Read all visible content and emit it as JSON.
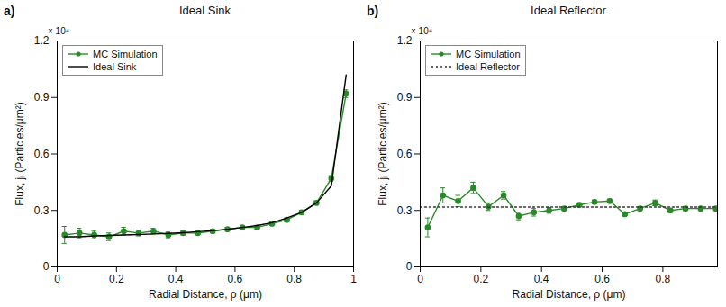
{
  "chart_data": [
    {
      "type": "line",
      "panel": "a)",
      "title": "Ideal Sink",
      "x_label": "Radial Distance, ρ (μm)",
      "y_label": "Flux, jᵢ (Particles/μm²)",
      "annotation": "× 10⁴",
      "xlim": [
        0,
        1
      ],
      "xticks": [
        0,
        0.2,
        0.4,
        0.6,
        0.8,
        1
      ],
      "ylim": [
        0,
        1.2
      ],
      "yticks": [
        0,
        0.3,
        0.6,
        0.9,
        1.2
      ],
      "grid": false,
      "legend": "top-left",
      "series": [
        {
          "name": "MC Simulation",
          "color": "#2a8a2a",
          "marker": "circle",
          "line_style": "solid",
          "x": [
            0.025,
            0.075,
            0.125,
            0.175,
            0.225,
            0.275,
            0.325,
            0.375,
            0.425,
            0.475,
            0.525,
            0.575,
            0.625,
            0.675,
            0.725,
            0.775,
            0.825,
            0.875,
            0.925,
            0.975
          ],
          "values": [
            0.17,
            0.18,
            0.17,
            0.16,
            0.19,
            0.18,
            0.19,
            0.17,
            0.18,
            0.18,
            0.19,
            0.2,
            0.21,
            0.21,
            0.23,
            0.25,
            0.29,
            0.34,
            0.47,
            0.92
          ],
          "errors": [
            0.045,
            0.025,
            0.02,
            0.02,
            0.02,
            0.015,
            0.015,
            0.015,
            0.01,
            0.01,
            0.01,
            0.01,
            0.01,
            0.01,
            0.01,
            0.01,
            0.01,
            0.01,
            0.015,
            0.02
          ]
        },
        {
          "name": "Ideal Sink",
          "color": "#000000",
          "marker": "none",
          "line_style": "solid",
          "x": [
            0.025,
            0.075,
            0.125,
            0.175,
            0.225,
            0.275,
            0.325,
            0.375,
            0.425,
            0.475,
            0.525,
            0.575,
            0.625,
            0.675,
            0.725,
            0.775,
            0.825,
            0.875,
            0.925,
            0.975
          ],
          "values": [
            0.16,
            0.16,
            0.165,
            0.167,
            0.17,
            0.172,
            0.175,
            0.178,
            0.182,
            0.187,
            0.193,
            0.2,
            0.21,
            0.22,
            0.235,
            0.26,
            0.29,
            0.34,
            0.43,
            1.02
          ]
        }
      ]
    },
    {
      "type": "line",
      "panel": "b)",
      "title": "Ideal Reflector",
      "x_label": "Radial Distance, ρ (μm)",
      "y_label": "Flux, jᵢ (Particles/μm²)",
      "annotation": "× 10⁴",
      "xlim": [
        0,
        0.98
      ],
      "xticks": [
        0,
        0.2,
        0.4,
        0.6,
        0.8
      ],
      "ylim": [
        0,
        1.2
      ],
      "yticks": [
        0,
        0.3,
        0.6,
        0.9,
        1.2
      ],
      "grid": false,
      "legend": "top-left",
      "series": [
        {
          "name": "MC Simulation",
          "color": "#2a8a2a",
          "marker": "circle",
          "line_style": "solid",
          "x": [
            0.025,
            0.075,
            0.125,
            0.175,
            0.225,
            0.275,
            0.325,
            0.375,
            0.425,
            0.475,
            0.525,
            0.575,
            0.625,
            0.675,
            0.725,
            0.775,
            0.825,
            0.875,
            0.925,
            0.975
          ],
          "values": [
            0.21,
            0.38,
            0.35,
            0.42,
            0.32,
            0.38,
            0.27,
            0.29,
            0.3,
            0.31,
            0.33,
            0.345,
            0.35,
            0.28,
            0.31,
            0.34,
            0.3,
            0.31,
            0.31,
            0.31
          ],
          "errors": [
            0.05,
            0.04,
            0.03,
            0.03,
            0.02,
            0.02,
            0.02,
            0.02,
            0.015,
            0.01,
            0.01,
            0.01,
            0.01,
            0.01,
            0.01,
            0.015,
            0.01,
            0.01,
            0.01,
            0.01
          ]
        },
        {
          "name": "Ideal Reflector",
          "color": "#333333",
          "marker": "none",
          "line_style": "dotted",
          "x": [
            0,
            0.98
          ],
          "values": [
            0.318,
            0.318
          ]
        }
      ]
    }
  ]
}
